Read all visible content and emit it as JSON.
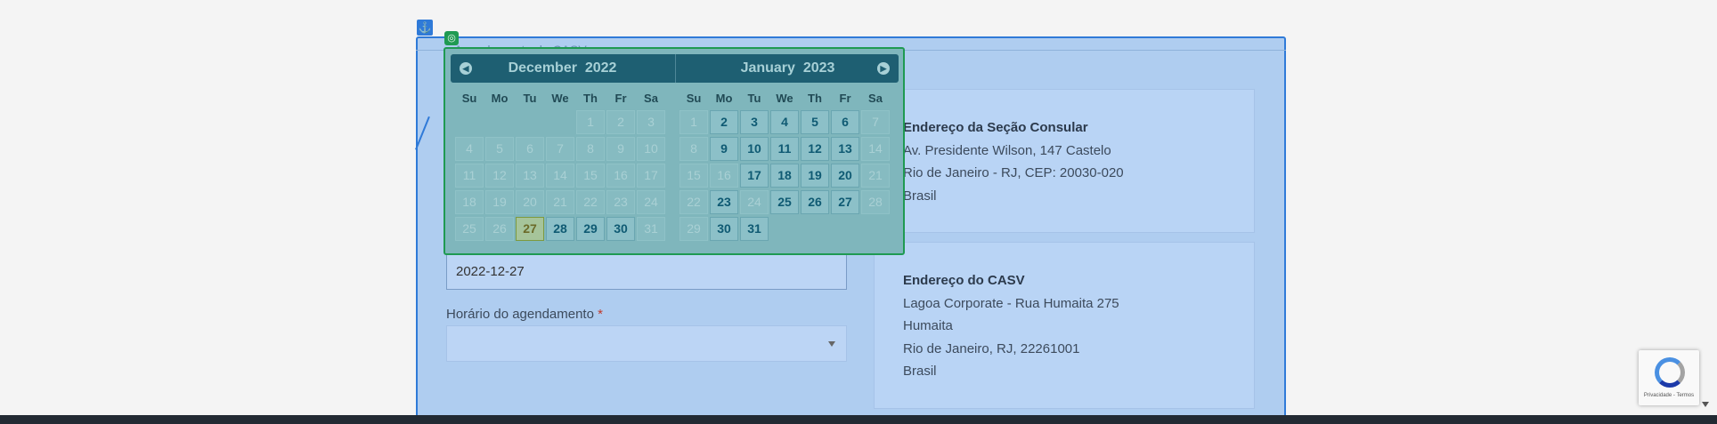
{
  "panel": {
    "legend": "Agendamento do CASV",
    "anchor_icon": "⚓"
  },
  "consular": {
    "title": "Endereço da Seção Consular",
    "lines": [
      "Av. Presidente Wilson, 147 Castelo",
      "Rio de Janeiro - RJ, CEP: 20030-020",
      "Brasil"
    ]
  },
  "casv": {
    "title": "Endereço do CASV",
    "lines": [
      "Lagoa Corporate - Rua Humaita 275",
      "Humaita",
      "Rio de Janeiro, RJ, 22261001",
      "Brasil"
    ]
  },
  "form": {
    "date_value": "2022-12-27",
    "time_label": "Horário do agendamento",
    "required_mark": "*"
  },
  "datepicker": {
    "prev_icon": "◀",
    "next_icon": "▶",
    "weekdays": [
      "Su",
      "Mo",
      "Tu",
      "We",
      "Th",
      "Fr",
      "Sa"
    ],
    "months": [
      {
        "month": "December",
        "year": "2022",
        "weeks": [
          [
            {
              "d": "",
              "s": "empty"
            },
            {
              "d": "",
              "s": "empty"
            },
            {
              "d": "",
              "s": "empty"
            },
            {
              "d": "",
              "s": "empty"
            },
            {
              "d": "1",
              "s": "disabled"
            },
            {
              "d": "2",
              "s": "disabled"
            },
            {
              "d": "3",
              "s": "disabled"
            }
          ],
          [
            {
              "d": "4",
              "s": "disabled"
            },
            {
              "d": "5",
              "s": "disabled"
            },
            {
              "d": "6",
              "s": "disabled"
            },
            {
              "d": "7",
              "s": "disabled"
            },
            {
              "d": "8",
              "s": "disabled"
            },
            {
              "d": "9",
              "s": "disabled"
            },
            {
              "d": "10",
              "s": "disabled"
            }
          ],
          [
            {
              "d": "11",
              "s": "disabled"
            },
            {
              "d": "12",
              "s": "disabled"
            },
            {
              "d": "13",
              "s": "disabled"
            },
            {
              "d": "14",
              "s": "disabled"
            },
            {
              "d": "15",
              "s": "disabled"
            },
            {
              "d": "16",
              "s": "disabled"
            },
            {
              "d": "17",
              "s": "disabled"
            }
          ],
          [
            {
              "d": "18",
              "s": "disabled"
            },
            {
              "d": "19",
              "s": "disabled"
            },
            {
              "d": "20",
              "s": "disabled"
            },
            {
              "d": "21",
              "s": "disabled"
            },
            {
              "d": "22",
              "s": "disabled"
            },
            {
              "d": "23",
              "s": "disabled"
            },
            {
              "d": "24",
              "s": "disabled"
            }
          ],
          [
            {
              "d": "25",
              "s": "disabled"
            },
            {
              "d": "26",
              "s": "disabled"
            },
            {
              "d": "27",
              "s": "today"
            },
            {
              "d": "28",
              "s": "active"
            },
            {
              "d": "29",
              "s": "active"
            },
            {
              "d": "30",
              "s": "active"
            },
            {
              "d": "31",
              "s": "disabled"
            }
          ]
        ]
      },
      {
        "month": "January",
        "year": "2023",
        "weeks": [
          [
            {
              "d": "1",
              "s": "disabled"
            },
            {
              "d": "2",
              "s": "active"
            },
            {
              "d": "3",
              "s": "active"
            },
            {
              "d": "4",
              "s": "active"
            },
            {
              "d": "5",
              "s": "active"
            },
            {
              "d": "6",
              "s": "active"
            },
            {
              "d": "7",
              "s": "disabled"
            }
          ],
          [
            {
              "d": "8",
              "s": "disabled"
            },
            {
              "d": "9",
              "s": "active"
            },
            {
              "d": "10",
              "s": "active"
            },
            {
              "d": "11",
              "s": "active"
            },
            {
              "d": "12",
              "s": "active"
            },
            {
              "d": "13",
              "s": "active"
            },
            {
              "d": "14",
              "s": "disabled"
            }
          ],
          [
            {
              "d": "15",
              "s": "disabled"
            },
            {
              "d": "16",
              "s": "disabled"
            },
            {
              "d": "17",
              "s": "active"
            },
            {
              "d": "18",
              "s": "active"
            },
            {
              "d": "19",
              "s": "active"
            },
            {
              "d": "20",
              "s": "active"
            },
            {
              "d": "21",
              "s": "disabled"
            }
          ],
          [
            {
              "d": "22",
              "s": "disabled"
            },
            {
              "d": "23",
              "s": "active"
            },
            {
              "d": "24",
              "s": "disabled"
            },
            {
              "d": "25",
              "s": "active"
            },
            {
              "d": "26",
              "s": "active"
            },
            {
              "d": "27",
              "s": "active"
            },
            {
              "d": "28",
              "s": "disabled"
            }
          ],
          [
            {
              "d": "29",
              "s": "disabled"
            },
            {
              "d": "30",
              "s": "active"
            },
            {
              "d": "31",
              "s": "active"
            },
            {
              "d": "",
              "s": "empty"
            },
            {
              "d": "",
              "s": "empty"
            },
            {
              "d": "",
              "s": "empty"
            },
            {
              "d": "",
              "s": "empty"
            }
          ]
        ]
      }
    ]
  },
  "recaptcha": {
    "text": "Privacidade - Termos"
  },
  "colors": {
    "panel_highlight": "#afcdf0",
    "panel_border": "#2f7ad8",
    "datepicker_border": "#1f9a52",
    "datepicker_header": "#1e5f72"
  }
}
